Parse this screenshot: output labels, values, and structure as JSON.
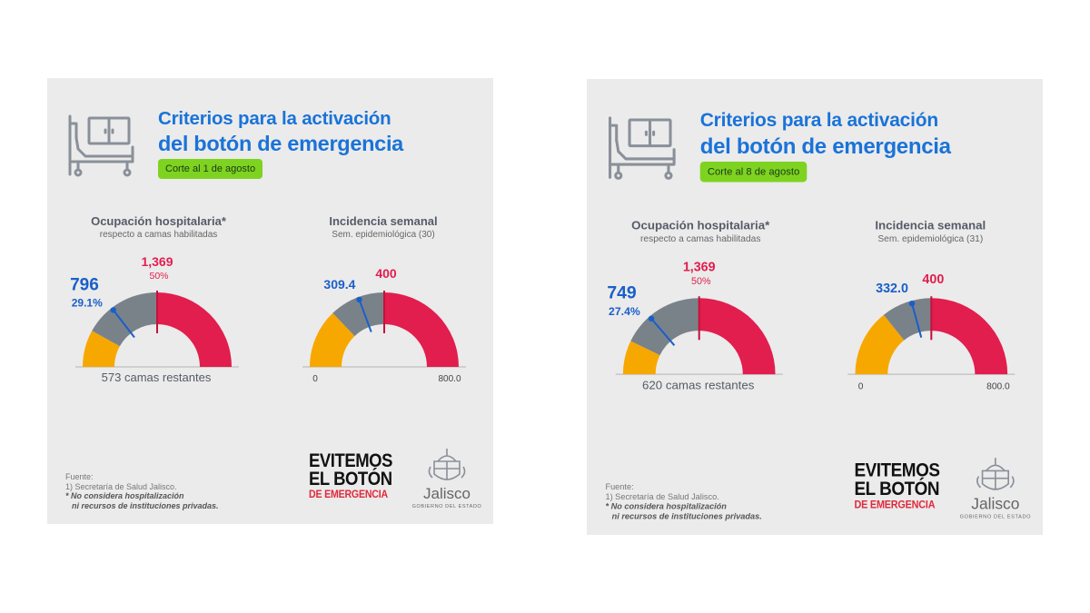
{
  "colors": {
    "panel_bg": "#ebebeb",
    "title_blue": "#1a73d8",
    "badge_green": "#7ed321",
    "orange": "#f6a800",
    "gray": "#7a8289",
    "red": "#e11e4e",
    "icon_gray": "#8a9099"
  },
  "icons": {
    "bed": "hospital-bed-icon",
    "crest": "jalisco-crest-icon"
  },
  "panels": [
    {
      "title_line1": "Criterios para la activación",
      "title_line2": "del botón de emergencia",
      "cut_label": "Corte al 1 de agosto",
      "occupancy": {
        "title": "Ocupación hospitalaria*",
        "subtitle": "respecto a camas habilitadas",
        "value_label": "796",
        "value_pct_label": "29.1%",
        "threshold_label": "1,369",
        "threshold_pct_label": "50%",
        "remaining_label": "573 camas restantes"
      },
      "incidence": {
        "title": "Incidencia semanal",
        "subtitle": "Sem. epidemiológica (30)",
        "value_label": "309.4",
        "threshold_label": "400",
        "min_label": "0",
        "max_label": "800.0"
      },
      "source_line1": "Fuente:",
      "source_line2": "1) Secretaría de Salud Jalisco.",
      "source_line3": "* No considera hospitalización",
      "source_line4": "ni recursos de instituciones privadas.",
      "campaign_line1": "EVITEMOS",
      "campaign_line2": "EL BOTÓN",
      "campaign_line3": "DE EMERGENCIA",
      "logo_name": "Jalisco",
      "logo_sub": "GOBIERNO DEL ESTADO"
    },
    {
      "title_line1": "Criterios para la activación",
      "title_line2": "del botón de emergencia",
      "cut_label": "Corte al 8 de agosto",
      "occupancy": {
        "title": "Ocupación hospitalaria*",
        "subtitle": "respecto a camas habilitadas",
        "value_label": "749",
        "value_pct_label": "27.4%",
        "threshold_label": "1,369",
        "threshold_pct_label": "50%",
        "remaining_label": "620 camas restantes"
      },
      "incidence": {
        "title": "Incidencia semanal",
        "subtitle": "Sem. epidemiológica (31)",
        "value_label": "332.0",
        "threshold_label": "400",
        "min_label": "0",
        "max_label": "800.0"
      },
      "source_line1": "Fuente:",
      "source_line2": "1) Secretaría de Salud Jalisco.",
      "source_line3": "* No considera hospitalización",
      "source_line4": "ni recursos de instituciones privadas.",
      "campaign_line1": "EVITEMOS",
      "campaign_line2": "EL BOTÓN",
      "campaign_line3": "DE EMERGENCIA",
      "logo_name": "Jalisco",
      "logo_sub": "GOBIERNO DEL ESTADO"
    }
  ],
  "chart_data": [
    {
      "type": "gauge",
      "panel": 0,
      "metric": "occupancy",
      "min": 0,
      "max": 100,
      "value": 29.1,
      "threshold": 50,
      "value_count": 796,
      "threshold_count": 1369,
      "remaining": 573
    },
    {
      "type": "gauge",
      "panel": 0,
      "metric": "incidence",
      "min": 0,
      "max": 800,
      "value": 309.4,
      "threshold": 400
    },
    {
      "type": "gauge",
      "panel": 1,
      "metric": "occupancy",
      "min": 0,
      "max": 100,
      "value": 27.4,
      "threshold": 50,
      "value_count": 749,
      "threshold_count": 1369,
      "remaining": 620
    },
    {
      "type": "gauge",
      "panel": 1,
      "metric": "incidence",
      "min": 0,
      "max": 800,
      "value": 332.0,
      "threshold": 400
    }
  ]
}
